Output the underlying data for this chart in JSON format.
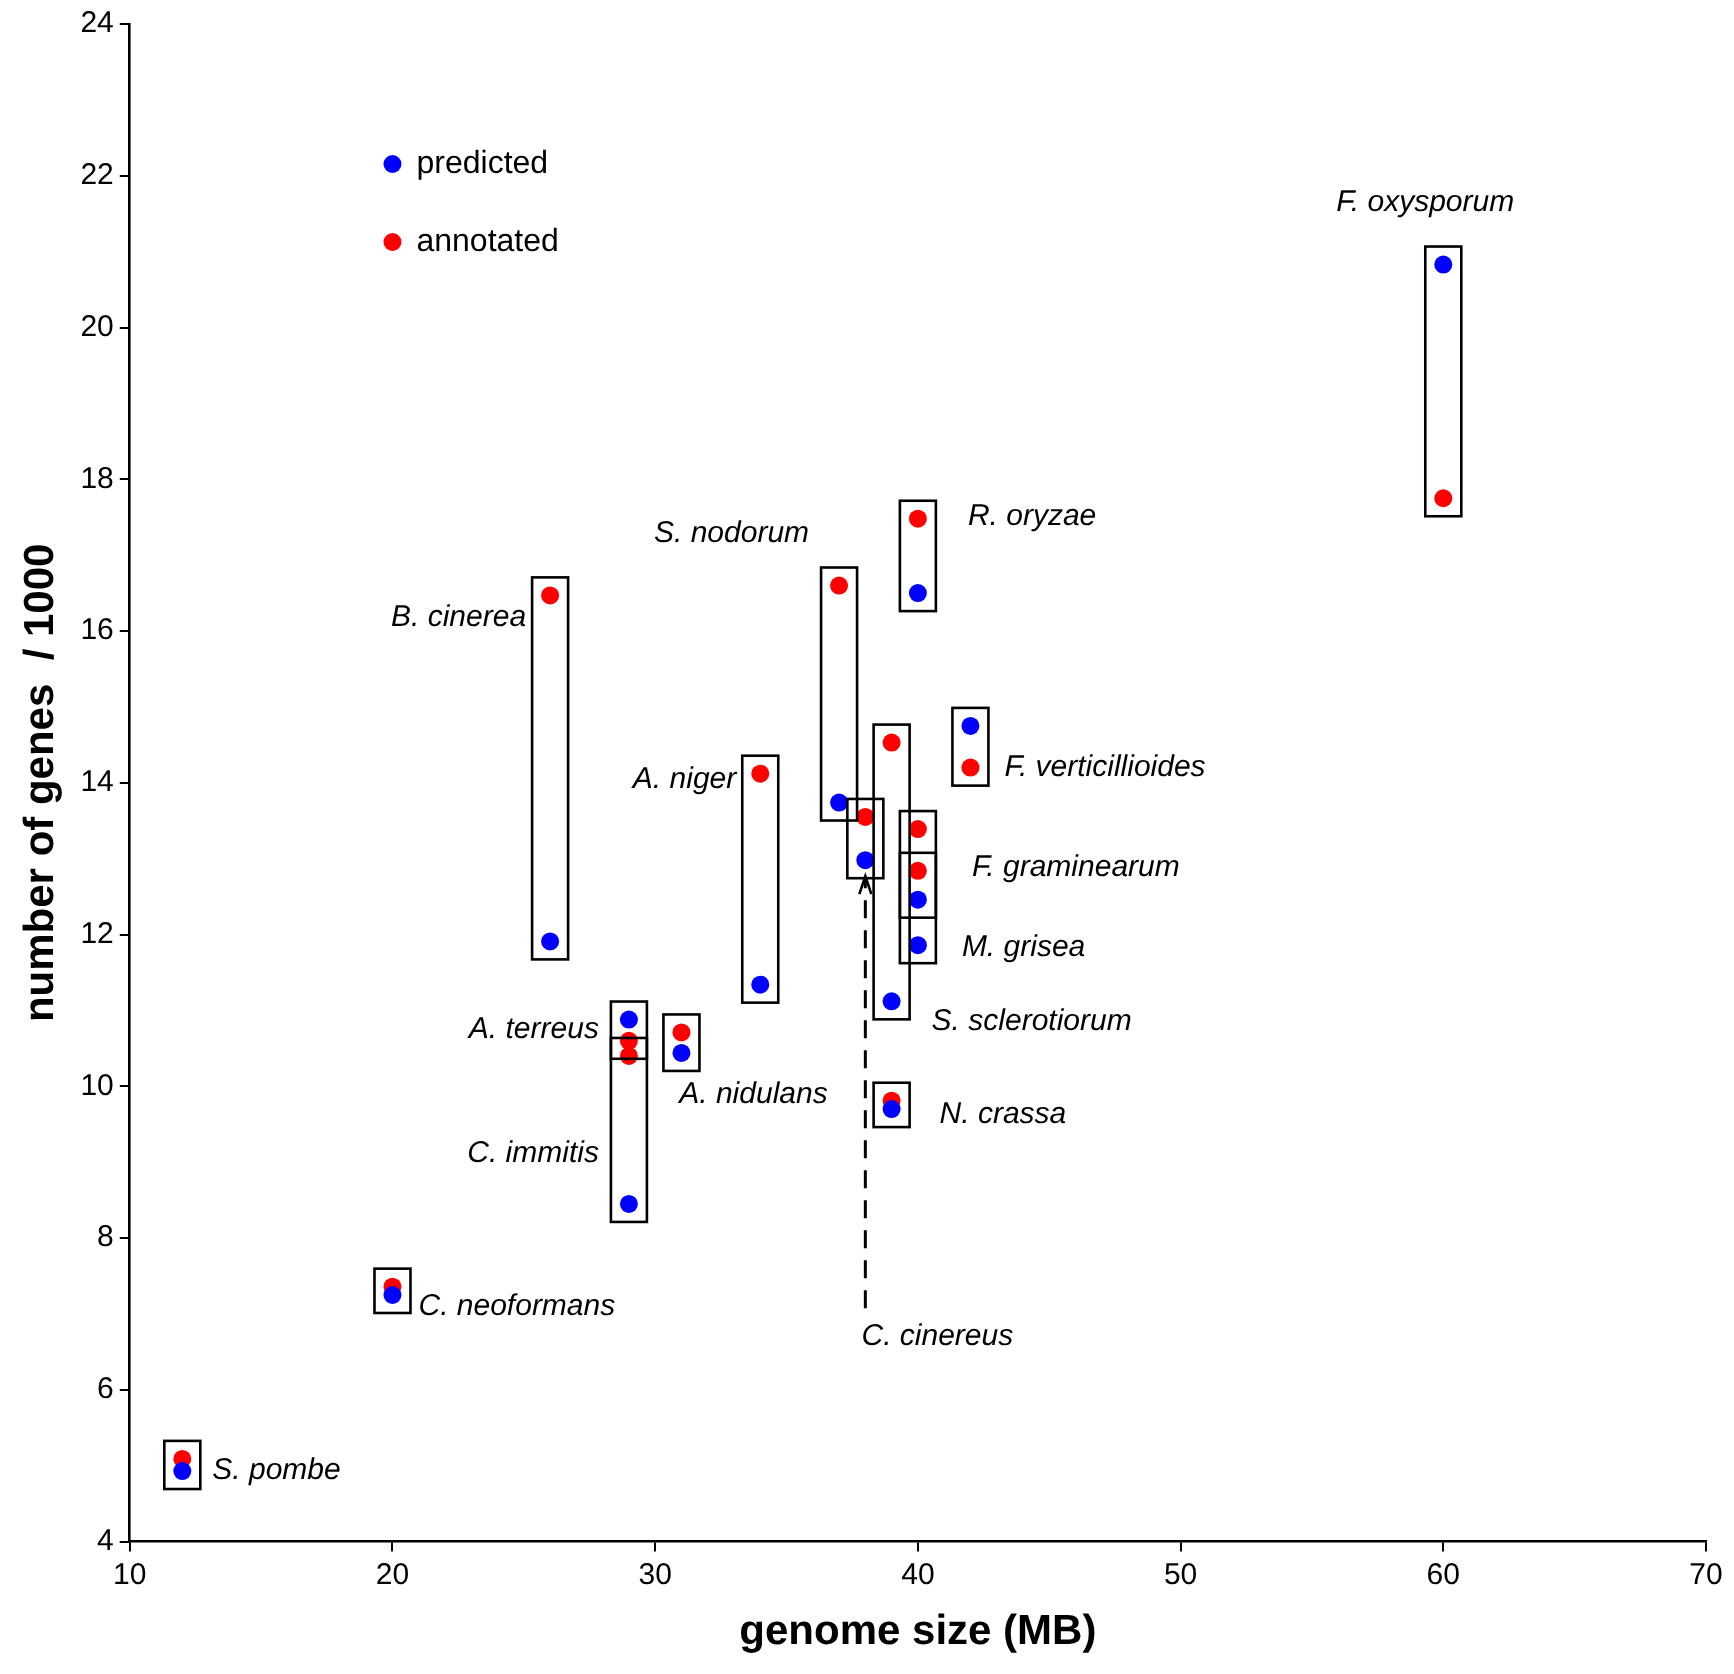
{
  "chart_data": {
    "type": "scatter",
    "xlabel": "genome size (MB)",
    "ylabel": "number of genes  / 1000",
    "xlim": [
      10,
      70
    ],
    "xticks": [
      10,
      20,
      30,
      40,
      50,
      60,
      70
    ],
    "ylim": [
      4,
      24
    ],
    "yticks": [
      4,
      6,
      8,
      10,
      12,
      14,
      16,
      18,
      20,
      22,
      24
    ],
    "legend": "top left",
    "marker": "circle",
    "series": [
      {
        "name": "predicted",
        "color": "#0000ff",
        "x": [
          12,
          20,
          29,
          29,
          31,
          26,
          34,
          37,
          38,
          39,
          39,
          40,
          40,
          40,
          42,
          60
        ],
        "values": [
          4.93,
          7.25,
          10.88,
          8.45,
          10.44,
          11.91,
          11.34,
          13.74,
          12.98,
          11.12,
          9.7,
          12.46,
          11.86,
          16.5,
          14.75,
          20.83
        ]
      },
      {
        "name": "annotated",
        "color": "#ff0000",
        "x": [
          12,
          20,
          29,
          29,
          31,
          26,
          34,
          37,
          38,
          39,
          39,
          40,
          40,
          40,
          42,
          60
        ],
        "values": [
          5.09,
          7.36,
          10.6,
          10.4,
          10.71,
          16.47,
          14.12,
          16.6,
          13.55,
          14.53,
          9.81,
          13.39,
          12.84,
          17.48,
          14.2,
          17.75
        ]
      }
    ],
    "annotations": [
      {
        "text": "S. pombe",
        "x": 12,
        "y": 4.93
      },
      {
        "text": "C. neoformans",
        "x": 20,
        "y": 7.25
      },
      {
        "text": "A. terreus",
        "x": 29,
        "y": 10.88
      },
      {
        "text": "C. immitis",
        "x": 29,
        "y": 8.45
      },
      {
        "text": "A. nidulans",
        "x": 31,
        "y": 10.44
      },
      {
        "text": "B. cinerea",
        "x": 26,
        "y": 16.47
      },
      {
        "text": "A. niger",
        "x": 34,
        "y": 14.12
      },
      {
        "text": "S. nodorum",
        "x": 37,
        "y": 16.6
      },
      "C. cinereus",
      {
        "text": "S. sclerotiorum",
        "x": 39,
        "y": 11.12
      },
      {
        "text": "N. crassa",
        "x": 39,
        "y": 9.7
      },
      {
        "text": "F. graminearum",
        "x": 40,
        "y": 12.46
      },
      {
        "text": "M. grisea",
        "x": 40,
        "y": 11.86
      },
      {
        "text": "R. oryzae",
        "x": 40,
        "y": 16.5
      },
      {
        "text": "F. verticillioides",
        "x": 42,
        "y": 14.75
      },
      {
        "text": "F. oxysporum",
        "x": 60,
        "y": 20.83
      }
    ]
  }
}
